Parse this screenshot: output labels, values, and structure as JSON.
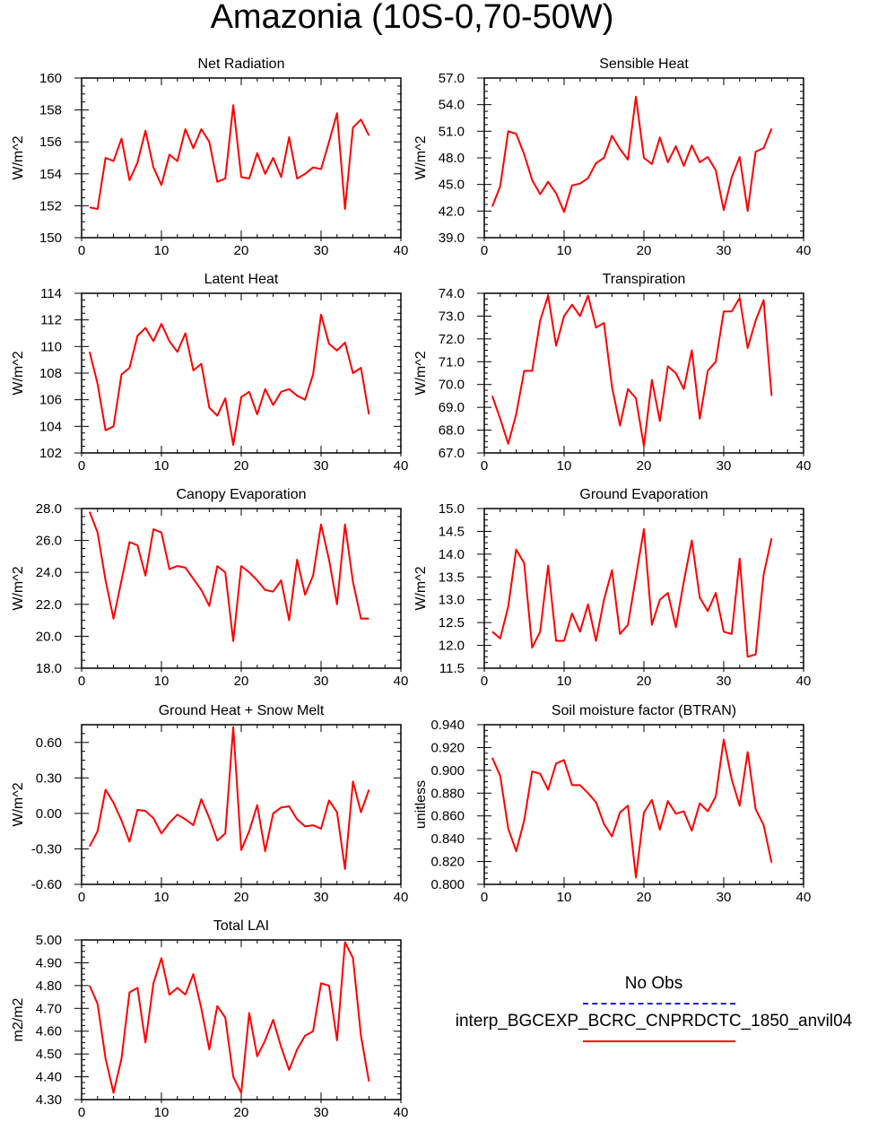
{
  "title": "Amazonia (10S-0,70-50W)",
  "legend": {
    "obs_label": "No Obs",
    "obs_color": "#1a1aff",
    "model_label": "interp_BGCEXP_BCRC_CNPRDCTC_1850_anvil04",
    "model_color": "#ff0000"
  },
  "chart_data": [
    {
      "type": "line",
      "title": "Net Radiation",
      "ylabel": "W/m^2",
      "xlim": [
        0,
        40
      ],
      "xticks": [
        "0",
        "10",
        "20",
        "30",
        "40"
      ],
      "ylim": [
        150,
        160
      ],
      "yticks": [
        "150",
        "152",
        "154",
        "156",
        "158",
        "160"
      ],
      "x": [
        1,
        2,
        3,
        4,
        5,
        6,
        7,
        8,
        9,
        10,
        11,
        12,
        13,
        14,
        15,
        16,
        17,
        18,
        19,
        20,
        21,
        22,
        23,
        24,
        25,
        26,
        27,
        28,
        29,
        30,
        31,
        32,
        33,
        34,
        35,
        36
      ],
      "values": [
        151.9,
        151.8,
        155.0,
        154.8,
        156.2,
        153.6,
        154.7,
        156.7,
        154.4,
        153.3,
        155.2,
        154.8,
        156.8,
        155.6,
        156.8,
        156.0,
        153.5,
        153.7,
        158.3,
        153.8,
        153.7,
        155.3,
        154.0,
        155.0,
        153.8,
        156.3,
        153.7,
        154.0,
        154.4,
        154.3,
        156.0,
        157.8,
        151.8,
        156.9,
        157.4,
        156.4
      ]
    },
    {
      "type": "line",
      "title": "Sensible Heat",
      "ylabel": "W/m^2",
      "xlim": [
        0,
        40
      ],
      "xticks": [
        "0",
        "10",
        "20",
        "30",
        "40"
      ],
      "ylim": [
        39,
        57
      ],
      "yticks": [
        "39.0",
        "42.0",
        "45.0",
        "48.0",
        "51.0",
        "54.0",
        "57.0"
      ],
      "x": [
        1,
        2,
        3,
        4,
        5,
        6,
        7,
        8,
        9,
        10,
        11,
        12,
        13,
        14,
        15,
        16,
        17,
        18,
        19,
        20,
        21,
        22,
        23,
        24,
        25,
        26,
        27,
        28,
        29,
        30,
        31,
        32,
        33,
        34,
        35,
        36
      ],
      "values": [
        42.5,
        44.8,
        51.0,
        50.7,
        48.4,
        45.5,
        43.9,
        45.3,
        44.0,
        41.9,
        44.9,
        45.1,
        45.7,
        47.4,
        48.0,
        50.5,
        49.0,
        47.8,
        54.9,
        48.0,
        47.3,
        50.3,
        47.5,
        49.3,
        47.1,
        49.4,
        47.5,
        48.1,
        46.6,
        42.1,
        45.8,
        48.1,
        42.0,
        48.7,
        49.1,
        51.3
      ]
    },
    {
      "type": "line",
      "title": "Latent Heat",
      "ylabel": "W/m^2",
      "xlim": [
        0,
        40
      ],
      "xticks": [
        "0",
        "10",
        "20",
        "30",
        "40"
      ],
      "ylim": [
        102,
        114
      ],
      "yticks": [
        "102",
        "104",
        "106",
        "108",
        "110",
        "112",
        "114"
      ],
      "x": [
        1,
        2,
        3,
        4,
        5,
        6,
        7,
        8,
        9,
        10,
        11,
        12,
        13,
        14,
        15,
        16,
        17,
        18,
        19,
        20,
        21,
        22,
        23,
        24,
        25,
        26,
        27,
        28,
        29,
        30,
        31,
        32,
        33,
        34,
        35,
        36
      ],
      "values": [
        109.6,
        107.2,
        103.7,
        104.0,
        107.9,
        108.4,
        110.8,
        111.4,
        110.4,
        111.7,
        110.4,
        109.6,
        111.0,
        108.2,
        108.7,
        105.4,
        104.8,
        106.1,
        102.6,
        106.2,
        106.6,
        104.9,
        106.8,
        105.6,
        106.6,
        106.8,
        106.3,
        106.0,
        107.9,
        112.4,
        110.2,
        109.7,
        110.3,
        108.0,
        108.4,
        104.9
      ]
    },
    {
      "type": "line",
      "title": "Transpiration",
      "ylabel": "W/m^2",
      "xlim": [
        0,
        40
      ],
      "xticks": [
        "0",
        "10",
        "20",
        "30",
        "40"
      ],
      "ylim": [
        67,
        74
      ],
      "yticks": [
        "67.0",
        "68.0",
        "69.0",
        "70.0",
        "71.0",
        "72.0",
        "73.0",
        "74.0"
      ],
      "x": [
        1,
        2,
        3,
        4,
        5,
        6,
        7,
        8,
        9,
        10,
        11,
        12,
        13,
        14,
        15,
        16,
        17,
        18,
        19,
        20,
        21,
        22,
        23,
        24,
        25,
        26,
        27,
        28,
        29,
        30,
        31,
        32,
        33,
        34,
        35,
        36
      ],
      "values": [
        69.5,
        68.5,
        67.4,
        68.7,
        70.6,
        70.6,
        72.8,
        73.9,
        71.7,
        73.0,
        73.5,
        73.0,
        73.9,
        72.5,
        72.7,
        69.9,
        68.2,
        69.8,
        69.4,
        67.3,
        70.2,
        68.4,
        70.8,
        70.5,
        69.8,
        71.5,
        68.5,
        70.6,
        71.0,
        73.2,
        73.2,
        73.8,
        71.6,
        72.8,
        73.7,
        69.5
      ]
    },
    {
      "type": "line",
      "title": "Canopy Evaporation",
      "ylabel": "W/m^2",
      "xlim": [
        0,
        40
      ],
      "xticks": [
        "0",
        "10",
        "20",
        "30",
        "40"
      ],
      "ylim": [
        18,
        28
      ],
      "yticks": [
        "18.0",
        "20.0",
        "22.0",
        "24.0",
        "26.0",
        "28.0"
      ],
      "x": [
        1,
        2,
        3,
        4,
        5,
        6,
        7,
        8,
        9,
        10,
        11,
        12,
        13,
        14,
        15,
        16,
        17,
        18,
        19,
        20,
        21,
        22,
        23,
        24,
        25,
        26,
        27,
        28,
        29,
        30,
        31,
        32,
        33,
        34,
        35,
        36
      ],
      "values": [
        27.8,
        26.5,
        23.5,
        21.1,
        23.5,
        25.9,
        25.7,
        23.8,
        26.7,
        26.5,
        24.2,
        24.4,
        24.3,
        23.6,
        22.9,
        21.9,
        24.4,
        24.0,
        19.7,
        24.4,
        24.0,
        23.5,
        22.9,
        22.8,
        23.5,
        21.0,
        24.8,
        22.6,
        23.8,
        27.0,
        24.8,
        22.0,
        27.0,
        23.4,
        21.1,
        21.1
      ]
    },
    {
      "type": "line",
      "title": "Ground Evaporation",
      "ylabel": "W/m^2",
      "xlim": [
        0,
        40
      ],
      "xticks": [
        "0",
        "10",
        "20",
        "30",
        "40"
      ],
      "ylim": [
        11.5,
        15
      ],
      "yticks": [
        "11.5",
        "12.0",
        "12.5",
        "13.0",
        "13.5",
        "14.0",
        "14.5",
        "15.0"
      ],
      "x": [
        1,
        2,
        3,
        4,
        5,
        6,
        7,
        8,
        9,
        10,
        11,
        12,
        13,
        14,
        15,
        16,
        17,
        18,
        19,
        20,
        21,
        22,
        23,
        24,
        25,
        26,
        27,
        28,
        29,
        30,
        31,
        32,
        33,
        34,
        35,
        36
      ],
      "values": [
        12.3,
        12.15,
        12.85,
        14.1,
        13.8,
        11.95,
        12.3,
        13.75,
        12.1,
        12.1,
        12.7,
        12.3,
        12.9,
        12.1,
        13.0,
        13.65,
        12.25,
        12.45,
        13.5,
        14.55,
        12.45,
        13.0,
        13.15,
        12.4,
        13.4,
        14.3,
        13.05,
        12.75,
        13.15,
        12.3,
        12.25,
        13.9,
        11.75,
        11.8,
        13.55,
        14.35
      ]
    },
    {
      "type": "line",
      "title": "Ground Heat + Snow Melt",
      "ylabel": "W/m^2",
      "xlim": [
        0,
        40
      ],
      "xticks": [
        "0",
        "10",
        "20",
        "30",
        "40"
      ],
      "ylim": [
        -0.6,
        0.75
      ],
      "yticks": [
        "-0.60",
        "-0.30",
        "0.00",
        "0.30",
        "0.60"
      ],
      "x": [
        1,
        2,
        3,
        4,
        5,
        6,
        7,
        8,
        9,
        10,
        11,
        12,
        13,
        14,
        15,
        16,
        17,
        18,
        19,
        20,
        21,
        22,
        23,
        24,
        25,
        26,
        27,
        28,
        29,
        30,
        31,
        32,
        33,
        34,
        35,
        36
      ],
      "values": [
        -0.28,
        -0.15,
        0.2,
        0.09,
        -0.06,
        -0.24,
        0.03,
        0.02,
        -0.04,
        -0.17,
        -0.08,
        -0.01,
        -0.05,
        -0.1,
        0.12,
        -0.04,
        -0.23,
        -0.17,
        0.73,
        -0.31,
        -0.15,
        0.07,
        -0.32,
        0.0,
        0.05,
        0.06,
        -0.05,
        -0.11,
        -0.1,
        -0.13,
        0.11,
        0.01,
        -0.47,
        0.27,
        0.01,
        0.2
      ]
    },
    {
      "type": "line",
      "title": "Soil moisture factor (BTRAN)",
      "ylabel": "unitless",
      "xlim": [
        0,
        40
      ],
      "xticks": [
        "0",
        "10",
        "20",
        "30",
        "40"
      ],
      "ylim": [
        0.8,
        0.94
      ],
      "yticks": [
        "0.800",
        "0.820",
        "0.840",
        "0.860",
        "0.880",
        "0.900",
        "0.920",
        "0.940"
      ],
      "x": [
        1,
        2,
        3,
        4,
        5,
        6,
        7,
        8,
        9,
        10,
        11,
        12,
        13,
        14,
        15,
        16,
        17,
        18,
        19,
        20,
        21,
        22,
        23,
        24,
        25,
        26,
        27,
        28,
        29,
        30,
        31,
        32,
        33,
        34,
        35,
        36
      ],
      "values": [
        0.911,
        0.895,
        0.849,
        0.829,
        0.856,
        0.899,
        0.897,
        0.883,
        0.906,
        0.909,
        0.887,
        0.887,
        0.88,
        0.872,
        0.853,
        0.842,
        0.863,
        0.869,
        0.806,
        0.863,
        0.874,
        0.848,
        0.873,
        0.862,
        0.864,
        0.847,
        0.871,
        0.864,
        0.877,
        0.927,
        0.892,
        0.869,
        0.916,
        0.866,
        0.852,
        0.819
      ]
    },
    {
      "type": "line",
      "title": "Total LAI",
      "ylabel": "m2/m2",
      "xlim": [
        0,
        40
      ],
      "xticks": [
        "0",
        "10",
        "20",
        "30",
        "40"
      ],
      "ylim": [
        4.3,
        5.0
      ],
      "yticks": [
        "4.30",
        "4.40",
        "4.50",
        "4.60",
        "4.70",
        "4.80",
        "4.90",
        "5.00"
      ],
      "x": [
        1,
        2,
        3,
        4,
        5,
        6,
        7,
        8,
        9,
        10,
        11,
        12,
        13,
        14,
        15,
        16,
        17,
        18,
        19,
        20,
        21,
        22,
        23,
        24,
        25,
        26,
        27,
        28,
        29,
        30,
        31,
        32,
        33,
        34,
        35,
        36
      ],
      "values": [
        4.8,
        4.72,
        4.48,
        4.33,
        4.48,
        4.77,
        4.79,
        4.55,
        4.81,
        4.92,
        4.76,
        4.79,
        4.76,
        4.85,
        4.7,
        4.52,
        4.71,
        4.66,
        4.4,
        4.33,
        4.68,
        4.49,
        4.56,
        4.65,
        4.53,
        4.43,
        4.52,
        4.58,
        4.6,
        4.81,
        4.8,
        4.56,
        4.99,
        4.92,
        4.58,
        4.38
      ]
    }
  ]
}
